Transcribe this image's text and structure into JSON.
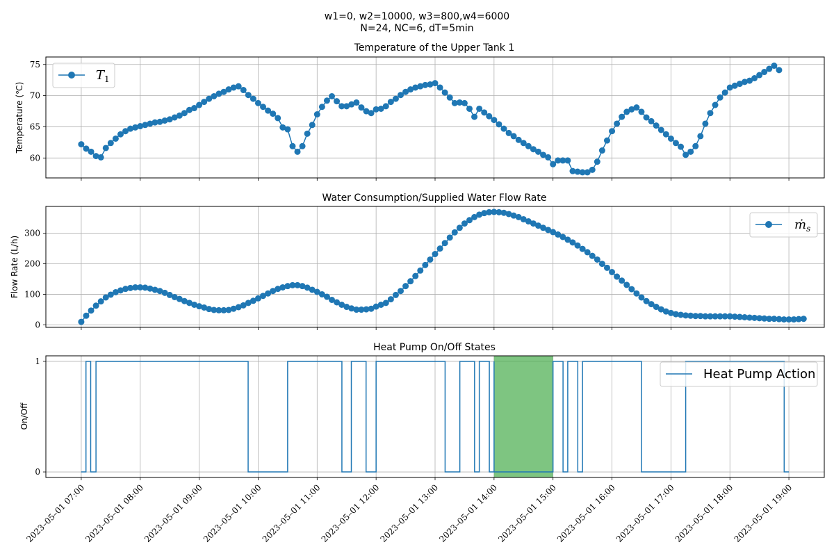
{
  "figure": {
    "suptitle_line1": "w1=0, w2=10000, w3=800,w4=6000",
    "suptitle_line2": "N=24, NC=6, dT=5min",
    "x_tick_labels": [
      "2023–05–01 07:00",
      "2023–05–01 08:00",
      "2023–05–01 09:00",
      "2023–05–01 10:00",
      "2023–05–01 11:00",
      "2023–05–01 12:00",
      "2023–05–01 13:00",
      "2023–05–01 14:00",
      "2023–05–01 15:00",
      "2023–05–01 16:00",
      "2023–05–01 17:00",
      "2023–05–01 18:00",
      "2023–05–01 19:00"
    ],
    "colors": {
      "series": "#1f77b4",
      "highlight": "#4caf50"
    }
  },
  "chart_data": [
    {
      "type": "line",
      "title": "Temperature of the Upper Tank 1",
      "ylabel": "Temperature (℃)",
      "legend": {
        "label_main": "T",
        "label_sub": "1",
        "placement": "top-left"
      },
      "ylim": [
        56.8,
        76.2
      ],
      "yticks": [
        60,
        65,
        70,
        75
      ],
      "xlim": [
        -0.6,
        12.6
      ],
      "grid": true,
      "step_minutes": 5,
      "values": [
        62.2,
        61.5,
        61.0,
        60.3,
        60.1,
        61.6,
        62.4,
        63.1,
        63.8,
        64.3,
        64.7,
        64.9,
        65.1,
        65.3,
        65.5,
        65.7,
        65.8,
        66.0,
        66.2,
        66.5,
        66.8,
        67.2,
        67.7,
        68.0,
        68.5,
        69.0,
        69.5,
        69.9,
        70.3,
        70.6,
        71.0,
        71.3,
        71.5,
        70.9,
        70.1,
        69.5,
        68.8,
        68.2,
        67.6,
        67.1,
        66.4,
        64.9,
        64.6,
        61.9,
        61.0,
        61.9,
        63.9,
        65.3,
        67.0,
        68.2,
        69.2,
        69.9,
        69.1,
        68.3,
        68.3,
        68.6,
        68.9,
        68.1,
        67.5,
        67.2,
        67.8,
        67.9,
        68.3,
        69.0,
        69.5,
        70.1,
        70.6,
        71.0,
        71.3,
        71.5,
        71.7,
        71.8,
        72.0,
        71.3,
        70.5,
        69.7,
        68.8,
        68.9,
        68.8,
        67.9,
        66.6,
        67.9,
        67.3,
        66.7,
        66.1,
        65.4,
        64.7,
        64.0,
        63.5,
        62.9,
        62.4,
        61.9,
        61.4,
        61.0,
        60.5,
        60.1,
        59.0,
        59.6,
        59.6,
        59.6,
        57.9,
        57.8,
        57.7,
        57.7,
        58.1,
        59.4,
        61.2,
        62.8,
        64.3,
        65.5,
        66.6,
        67.4,
        67.8,
        68.1,
        67.4,
        66.5,
        65.9,
        65.2,
        64.5,
        63.8,
        63.1,
        62.4,
        61.8,
        60.5,
        61.0,
        61.9,
        63.5,
        65.5,
        67.2,
        68.5,
        69.7,
        70.5,
        71.3,
        71.6,
        71.9,
        72.2,
        72.4,
        72.8,
        73.3,
        73.8,
        74.3,
        74.8,
        74.1
      ]
    },
    {
      "type": "line",
      "title": "Water Consumption/Supplied Water Flow Rate",
      "ylabel": "Flow Rate (L/h)",
      "legend": {
        "label_main": "ṁ",
        "label_sub": "s",
        "placement": "top-right"
      },
      "ylim": [
        -8,
        388
      ],
      "yticks": [
        0,
        100,
        200,
        300
      ],
      "xlim": [
        -0.6,
        12.6
      ],
      "grid": true,
      "step_minutes": 5,
      "values": [
        10,
        30,
        47,
        63,
        77,
        90,
        99,
        107,
        113,
        118,
        121,
        123,
        123,
        122,
        119,
        115,
        111,
        105,
        98,
        91,
        85,
        78,
        72,
        66,
        61,
        57,
        52,
        49,
        48,
        48,
        49,
        53,
        58,
        64,
        72,
        79,
        87,
        95,
        103,
        111,
        118,
        123,
        127,
        130,
        130,
        127,
        122,
        115,
        108,
        100,
        92,
        82,
        74,
        66,
        59,
        54,
        50,
        50,
        51,
        53,
        60,
        66,
        72,
        84,
        98,
        111,
        127,
        143,
        160,
        178,
        196,
        214,
        232,
        250,
        268,
        286,
        303,
        318,
        332,
        343,
        353,
        361,
        366,
        369,
        370,
        369,
        367,
        363,
        358,
        353,
        346,
        339,
        332,
        325,
        318,
        311,
        304,
        296,
        288,
        279,
        270,
        260,
        249,
        238,
        226,
        214,
        200,
        187,
        173,
        158,
        145,
        131,
        117,
        103,
        90,
        78,
        68,
        59,
        51,
        44,
        39,
        35,
        33,
        31,
        30,
        29,
        29,
        28,
        28,
        28,
        28,
        28,
        28,
        27,
        26,
        25,
        24,
        23,
        22,
        21,
        20,
        20,
        19,
        18,
        18,
        18,
        19,
        20
      ]
    },
    {
      "type": "line",
      "title": "Heat Pump On/Off States",
      "ylabel": "On/Off",
      "legend": {
        "label_main": "Heat Pump Action",
        "placement": "top-right"
      },
      "ylim": [
        -0.05,
        1.05
      ],
      "yticks": [
        0,
        1
      ],
      "xlim": [
        -0.6,
        12.6
      ],
      "grid": true,
      "highlight_range_hours": [
        7,
        8
      ],
      "step_segments": [
        [
          0,
          0
        ],
        [
          0.08,
          1
        ],
        [
          0.16,
          0
        ],
        [
          0.25,
          1
        ],
        [
          2.83,
          0
        ],
        [
          3.5,
          1
        ],
        [
          4.42,
          0
        ],
        [
          4.58,
          1
        ],
        [
          4.83,
          0
        ],
        [
          5.0,
          1
        ],
        [
          6.17,
          0
        ],
        [
          6.42,
          1
        ],
        [
          6.67,
          0
        ],
        [
          6.75,
          1
        ],
        [
          6.92,
          0
        ],
        [
          7.0,
          1
        ],
        [
          7.0,
          0
        ],
        [
          8.0,
          1
        ],
        [
          8.17,
          0
        ],
        [
          8.25,
          1
        ],
        [
          8.42,
          0
        ],
        [
          8.5,
          1
        ],
        [
          9.5,
          0
        ],
        [
          10.25,
          1
        ],
        [
          11.92,
          0
        ],
        [
          12.0,
          0
        ]
      ]
    }
  ]
}
